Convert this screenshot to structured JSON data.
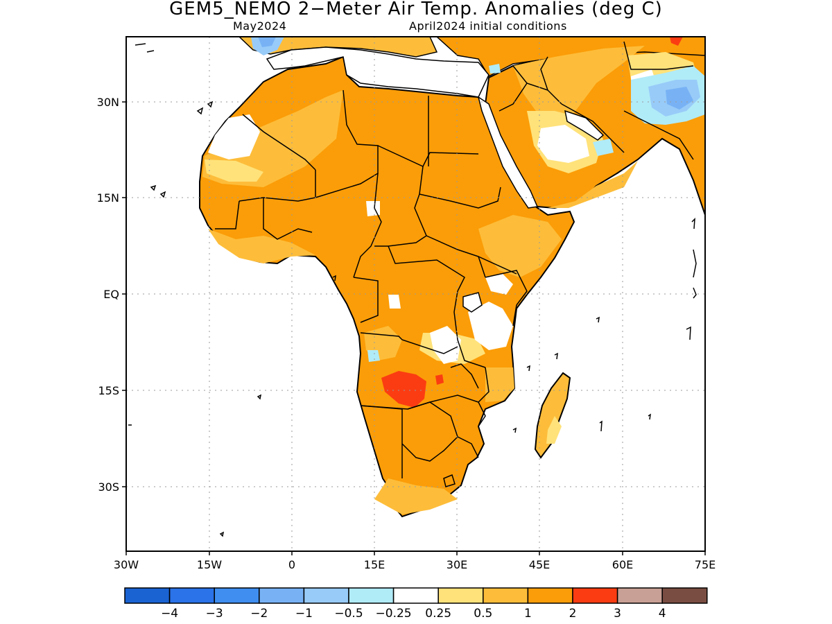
{
  "title": "GEM5_NEMO 2−Meter Air Temp. Anomalies (deg C)",
  "subtitle_left": "May2024",
  "subtitle_right": "April2024 initial conditions",
  "lat_labels": [
    "30N",
    "15N",
    "EQ",
    "15S",
    "30S"
  ],
  "lat_values": [
    30,
    15,
    0,
    -15,
    -30
  ],
  "lon_labels": [
    "30W",
    "15W",
    "0",
    "15E",
    "30E",
    "45E",
    "60E",
    "75E"
  ],
  "lon_values": [
    -30,
    -15,
    0,
    15,
    30,
    45,
    60,
    75
  ],
  "colorbar": {
    "colors": [
      "#1a63d3",
      "#2a73e8",
      "#3f8ef0",
      "#78b2f5",
      "#98cbf8",
      "#b0ebf8",
      "#ffffff",
      "#ffe27a",
      "#fdbd3a",
      "#fb9d08",
      "#fb3c12",
      "#c9a095",
      "#7a4d42"
    ],
    "labels": [
      "−4",
      "−3",
      "−2",
      "−1",
      "−0.5",
      "−0.25",
      "0.25",
      "0.5",
      "1",
      "2",
      "3",
      "4"
    ],
    "values": [
      -4,
      -3,
      -2,
      -1,
      -0.5,
      -0.25,
      0.25,
      0.5,
      1,
      2,
      3,
      4
    ]
  },
  "colors": {
    "land_warm": "#fb9d08",
    "land_mild": "#fdbd3a",
    "land_light": "#ffe27a",
    "hot": "#fb3c12",
    "ocean": "#ffffff",
    "coast": "#000000"
  }
}
